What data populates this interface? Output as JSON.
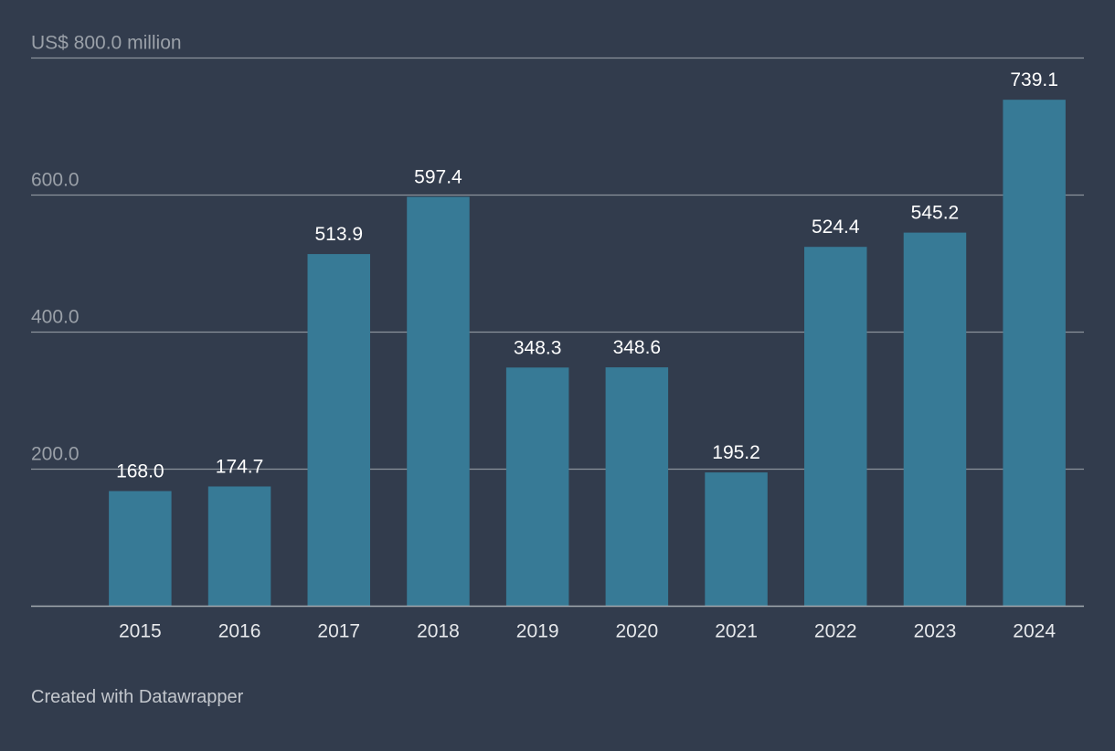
{
  "chart_data": {
    "type": "bar",
    "categories": [
      "2015",
      "2016",
      "2017",
      "2018",
      "2019",
      "2020",
      "2021",
      "2022",
      "2023",
      "2024"
    ],
    "values": [
      168.0,
      174.7,
      513.9,
      597.4,
      348.3,
      348.6,
      195.2,
      524.4,
      545.2,
      739.1
    ],
    "value_labels": [
      "168.0",
      "174.7",
      "513.9",
      "597.4",
      "348.3",
      "348.6",
      "195.2",
      "524.4",
      "545.2",
      "739.1"
    ],
    "ylim": [
      0,
      800
    ],
    "yticks": [
      200,
      400,
      600,
      800
    ],
    "ytick_labels": [
      "200.0",
      "400.0",
      "600.0",
      "US$ 800.0 million"
    ],
    "title": "",
    "xlabel": "",
    "ylabel": "US$ million",
    "bar_color": "#377a96",
    "grid": true
  },
  "footer": {
    "credit": "Created with Datawrapper"
  }
}
